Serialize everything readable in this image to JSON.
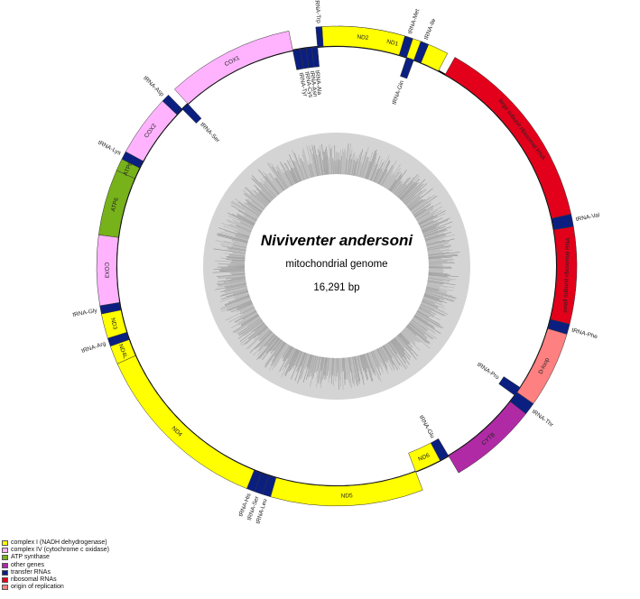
{
  "title": "Niviventer andersoni",
  "subtitle": "mitochondrial genome",
  "length": "16,291 bp",
  "legend": [
    {
      "label": "complex I (NADH dehydrogenase)",
      "color": "#ffff00"
    },
    {
      "label": "complex IV (cytochrome c oxidase)",
      "color": "#ffb3ff"
    },
    {
      "label": "ATP synthase",
      "color": "#77b21a"
    },
    {
      "label": "other genes",
      "color": "#b02aa6"
    },
    {
      "label": "transfer RNAs",
      "color": "#0b1f80"
    },
    {
      "label": "ribosomal RNAs",
      "color": "#e3001b"
    },
    {
      "label": "origin of replication",
      "color": "#ff8080"
    }
  ],
  "genes": [
    {
      "label": "ND1",
      "type": "complex_i",
      "strand": "outer",
      "start": 0.5,
      "end": 27.5
    },
    {
      "label": "large subunit ribosomal RNA",
      "type": "rrna",
      "strand": "outer",
      "start": 29.5,
      "end": 77.5
    },
    {
      "label": "tRNA-Val",
      "type": "trna",
      "strand": "outer",
      "start": 77.5,
      "end": 80.5
    },
    {
      "label": "small subunit ribosomal RNA",
      "type": "rrna",
      "strand": "outer",
      "start": 80.5,
      "end": 104
    },
    {
      "label": "tRNA-Phe",
      "type": "trna",
      "strand": "outer",
      "start": 104,
      "end": 106.5
    },
    {
      "label": "D-loop",
      "type": "origin",
      "strand": "outer",
      "start": 106.5,
      "end": 125
    },
    {
      "label": "tRNA-Thr",
      "type": "trna",
      "strand": "outer",
      "start": 125,
      "end": 128
    },
    {
      "label": "tRNA-Pro",
      "type": "trna",
      "strand": "inner",
      "start": 123.5,
      "end": 126
    },
    {
      "label": "CYTB",
      "type": "other",
      "strand": "outer",
      "start": 128,
      "end": 149.5
    },
    {
      "label": "tRNA-Glu",
      "type": "trna",
      "strand": "inner",
      "start": 149.5,
      "end": 152
    },
    {
      "label": "ND6",
      "type": "complex_i",
      "strand": "inner",
      "start": 152,
      "end": 159
    },
    {
      "label": "ND5",
      "type": "complex_i",
      "strand": "outer",
      "start": 159,
      "end": 196
    },
    {
      "label": "tRNA-Leu",
      "type": "trna",
      "strand": "outer",
      "start": 196,
      "end": 198
    },
    {
      "label": "tRNA-Ser",
      "type": "trna",
      "strand": "outer",
      "start": 198,
      "end": 200
    },
    {
      "label": "tRNA-His",
      "type": "trna",
      "strand": "outer",
      "start": 200,
      "end": 202
    },
    {
      "label": "ND4",
      "type": "complex_i",
      "strand": "outer",
      "start": 202,
      "end": 246
    },
    {
      "label": "ND4L",
      "type": "complex_i",
      "strand": "outer",
      "start": 246,
      "end": 250.5
    },
    {
      "label": "tRNA-Arg",
      "type": "trna",
      "strand": "outer",
      "start": 250.5,
      "end": 252.5
    },
    {
      "label": "ND3",
      "type": "complex_i",
      "strand": "outer",
      "start": 252.5,
      "end": 258.5
    },
    {
      "label": "tRNA-Gly",
      "type": "trna",
      "strand": "outer",
      "start": 258.5,
      "end": 260.5
    },
    {
      "label": "COX3",
      "type": "complex_iv",
      "strand": "outer",
      "start": 260.5,
      "end": 277.5
    },
    {
      "label": "ATP6",
      "type": "atp",
      "strand": "outer",
      "start": 277.5,
      "end": 293.5
    },
    {
      "label": "ATP8",
      "type": "atp",
      "strand": "outer",
      "start": 293.5,
      "end": 296.5
    },
    {
      "label": "tRNA-Lys",
      "type": "trna",
      "strand": "outer",
      "start": 296.5,
      "end": 298.5
    },
    {
      "label": "COX2",
      "type": "complex_iv",
      "strand": "outer",
      "start": 298.5,
      "end": 313.5
    },
    {
      "label": "tRNA-Asp",
      "type": "trna",
      "strand": "outer",
      "start": 313.5,
      "end": 315.5
    },
    {
      "label": "tRNA-Ser",
      "type": "trna",
      "strand": "inner",
      "start": 315.5,
      "end": 317.5
    },
    {
      "label": "COX1",
      "type": "complex_iv",
      "strand": "outer",
      "start": 317.5,
      "end": 348.5
    },
    {
      "label": "tRNA-Tyr",
      "type": "trna",
      "strand": "inner",
      "start": 348.5,
      "end": 350.5
    },
    {
      "label": "tRNA-Cys",
      "type": "trna",
      "strand": "inner",
      "start": 350.5,
      "end": 352
    },
    {
      "label": "tRNA-Asn",
      "type": "trna",
      "strand": "inner",
      "start": 352,
      "end": 353.5
    },
    {
      "label": "tRNA-Ala",
      "type": "trna",
      "strand": "inner",
      "start": 353.5,
      "end": 355
    },
    {
      "label": "tRNA-Trp",
      "type": "trna",
      "strand": "outer",
      "start": 355,
      "end": 356.5
    },
    {
      "label": "ND2",
      "type": "complex_i",
      "strand": "outer",
      "start": 356.5,
      "end": 376.5
    },
    {
      "label": "tRNA-Met",
      "type": "trna",
      "strand": "outer",
      "start": 376.5,
      "end": 378.5
    },
    {
      "label": "tRNA-Gln",
      "type": "trna",
      "strand": "inner",
      "start": 378.5,
      "end": 380.5
    },
    {
      "label": "tRNA-Ile",
      "type": "trna",
      "strand": "outer",
      "start": 380.5,
      "end": 382.5
    }
  ],
  "type_colors": {
    "complex_i": "#ffff00",
    "complex_iv": "#ffb3ff",
    "atp": "#77b21a",
    "other": "#b02aa6",
    "trna": "#0b1f80",
    "rrna": "#e3001b",
    "origin": "#ff8080"
  }
}
